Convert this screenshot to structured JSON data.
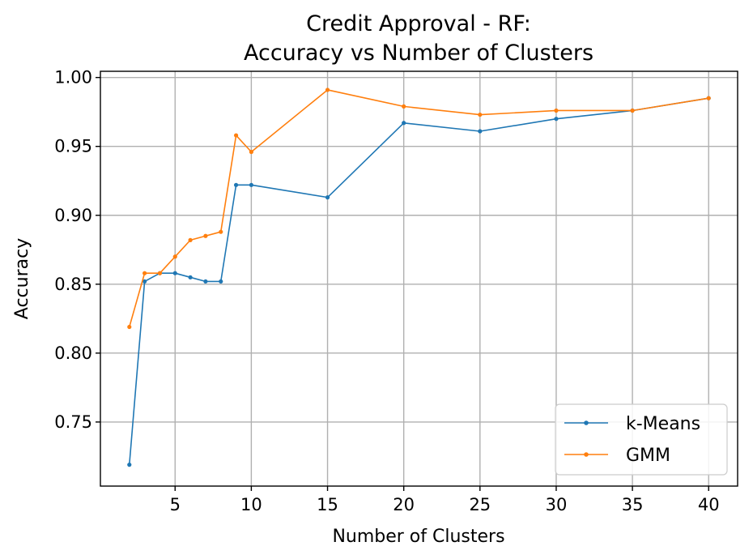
{
  "chart_data": {
    "type": "line",
    "title_line1": "Credit Approval - RF:",
    "title_line2": "Accuracy vs Number of Clusters",
    "xlabel": "Number of Clusters",
    "ylabel": "Accuracy",
    "xlim": [
      0.1,
      41.9
    ],
    "ylim": [
      0.7035,
      1.0045
    ],
    "xticks": [
      5,
      10,
      15,
      20,
      25,
      30,
      35,
      40
    ],
    "yticks": [
      0.75,
      0.8,
      0.85,
      0.9,
      0.95,
      1.0
    ],
    "grid": true,
    "legend_position": "lower-right",
    "series": [
      {
        "name": "k-Means",
        "color": "#1f77b4",
        "x": [
          2,
          3,
          4,
          5,
          6,
          7,
          8,
          9,
          10,
          15,
          20,
          25,
          30,
          35,
          40
        ],
        "values": [
          0.719,
          0.852,
          0.858,
          0.858,
          0.855,
          0.852,
          0.852,
          0.922,
          0.922,
          0.913,
          0.967,
          0.961,
          0.97,
          0.976,
          0.985
        ]
      },
      {
        "name": "GMM",
        "color": "#ff7f0e",
        "x": [
          2,
          3,
          4,
          5,
          6,
          7,
          8,
          9,
          10,
          15,
          20,
          25,
          30,
          35,
          40
        ],
        "values": [
          0.819,
          0.858,
          0.858,
          0.87,
          0.882,
          0.885,
          0.888,
          0.958,
          0.946,
          0.991,
          0.979,
          0.973,
          0.976,
          0.976,
          0.985
        ]
      }
    ]
  }
}
